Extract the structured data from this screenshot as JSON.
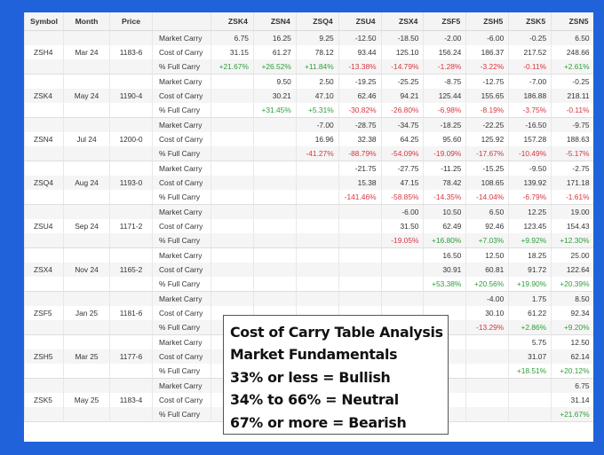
{
  "header": {
    "symbol": "Symbol",
    "month": "Month",
    "price": "Price",
    "contracts": [
      "ZSK4",
      "ZSN4",
      "ZSQ4",
      "ZSU4",
      "ZSX4",
      "ZSF5",
      "ZSH5",
      "ZSK5",
      "ZSN5"
    ]
  },
  "rows": [
    {
      "symbol": "",
      "month": "",
      "price": "",
      "label": "Market Carry",
      "values": [
        "6.75",
        "16.25",
        "9.25",
        "-12.50",
        "-18.50",
        "-2.00",
        "-6.00",
        "-0.25",
        "6.50"
      ]
    },
    {
      "symbol": "ZSH4",
      "month": "Mar 24",
      "price": "1183-6",
      "label": "Cost of Carry",
      "values": [
        "31.15",
        "61.27",
        "78.12",
        "93.44",
        "125.10",
        "156.24",
        "186.37",
        "217.52",
        "248.66"
      ]
    },
    {
      "symbol": "",
      "month": "",
      "price": "",
      "label": "% Full Carry",
      "values": [
        "+21.67%",
        "+26.52%",
        "+11.84%",
        "-13.38%",
        "-14.79%",
        "-1.28%",
        "-3.22%",
        "-0.11%",
        "+2.61%"
      ]
    },
    {
      "symbol": "",
      "month": "",
      "price": "",
      "label": "Market Carry",
      "values": [
        "",
        "9.50",
        "2.50",
        "-19.25",
        "-25.25",
        "-8.75",
        "-12.75",
        "-7.00",
        "-0.25"
      ]
    },
    {
      "symbol": "ZSK4",
      "month": "May 24",
      "price": "1190-4",
      "label": "Cost of Carry",
      "values": [
        "",
        "30.21",
        "47.10",
        "62.46",
        "94.21",
        "125.44",
        "155.65",
        "186.88",
        "218.11"
      ]
    },
    {
      "symbol": "",
      "month": "",
      "price": "",
      "label": "% Full Carry",
      "values": [
        "",
        "+31.45%",
        "+5.31%",
        "-30.82%",
        "-26.80%",
        "-6.98%",
        "-8.19%",
        "-3.75%",
        "-0.11%"
      ]
    },
    {
      "symbol": "",
      "month": "",
      "price": "",
      "label": "Market Carry",
      "values": [
        "",
        "",
        "-7.00",
        "-28.75",
        "-34.75",
        "-18.25",
        "-22.25",
        "-16.50",
        "-9.75"
      ]
    },
    {
      "symbol": "ZSN4",
      "month": "Jul 24",
      "price": "1200-0",
      "label": "Cost of Carry",
      "values": [
        "",
        "",
        "16.96",
        "32.38",
        "64.25",
        "95.60",
        "125.92",
        "157.28",
        "188.63"
      ]
    },
    {
      "symbol": "",
      "month": "",
      "price": "",
      "label": "% Full Carry",
      "values": [
        "",
        "",
        "-41.27%",
        "-88.79%",
        "-54.09%",
        "-19.09%",
        "-17.67%",
        "-10.49%",
        "-5.17%"
      ]
    },
    {
      "symbol": "",
      "month": "",
      "price": "",
      "label": "Market Carry",
      "values": [
        "",
        "",
        "",
        "-21.75",
        "-27.75",
        "-11.25",
        "-15.25",
        "-9.50",
        "-2.75"
      ]
    },
    {
      "symbol": "ZSQ4",
      "month": "Aug 24",
      "price": "1193-0",
      "label": "Cost of Carry",
      "values": [
        "",
        "",
        "",
        "15.38",
        "47.15",
        "78.42",
        "108.65",
        "139.92",
        "171.18"
      ]
    },
    {
      "symbol": "",
      "month": "",
      "price": "",
      "label": "% Full Carry",
      "values": [
        "",
        "",
        "",
        "-141.46%",
        "-58.85%",
        "-14.35%",
        "-14.04%",
        "-6.79%",
        "-1.61%"
      ]
    },
    {
      "symbol": "",
      "month": "",
      "price": "",
      "label": "Market Carry",
      "values": [
        "",
        "",
        "",
        "",
        "-6.00",
        "10.50",
        "6.50",
        "12.25",
        "19.00"
      ]
    },
    {
      "symbol": "ZSU4",
      "month": "Sep 24",
      "price": "1171-2",
      "label": "Cost of Carry",
      "values": [
        "",
        "",
        "",
        "",
        "31.50",
        "62.49",
        "92.46",
        "123.45",
        "154.43"
      ]
    },
    {
      "symbol": "",
      "month": "",
      "price": "",
      "label": "% Full Carry",
      "values": [
        "",
        "",
        "",
        "",
        "-19.05%",
        "+16.80%",
        "+7.03%",
        "+9.92%",
        "+12.30%"
      ]
    },
    {
      "symbol": "",
      "month": "",
      "price": "",
      "label": "Market Carry",
      "values": [
        "",
        "",
        "",
        "",
        "",
        "16.50",
        "12.50",
        "18.25",
        "25.00"
      ]
    },
    {
      "symbol": "ZSX4",
      "month": "Nov 24",
      "price": "1165-2",
      "label": "Cost of Carry",
      "values": [
        "",
        "",
        "",
        "",
        "",
        "30.91",
        "60.81",
        "91.72",
        "122.64"
      ]
    },
    {
      "symbol": "",
      "month": "",
      "price": "",
      "label": "% Full Carry",
      "values": [
        "",
        "",
        "",
        "",
        "",
        "+53.38%",
        "+20.56%",
        "+19.90%",
        "+20.39%"
      ]
    },
    {
      "symbol": "",
      "month": "",
      "price": "",
      "label": "Market Carry",
      "values": [
        "",
        "",
        "",
        "",
        "",
        "",
        "-4.00",
        "1.75",
        "8.50"
      ]
    },
    {
      "symbol": "ZSF5",
      "month": "Jan 25",
      "price": "1181-6",
      "label": "Cost of Carry",
      "values": [
        "",
        "",
        "",
        "",
        "",
        "",
        "30.10",
        "61.22",
        "92.34"
      ]
    },
    {
      "symbol": "",
      "month": "",
      "price": "",
      "label": "% Full Carry",
      "values": [
        "",
        "",
        "",
        "",
        "",
        "",
        "-13.29%",
        "+2.86%",
        "+9.20%"
      ]
    },
    {
      "symbol": "",
      "month": "",
      "price": "",
      "label": "Market Carry",
      "values": [
        "",
        "",
        "",
        "",
        "",
        "",
        "",
        "5.75",
        "12.50"
      ]
    },
    {
      "symbol": "ZSH5",
      "month": "Mar 25",
      "price": "1177-6",
      "label": "Cost of Carry",
      "values": [
        "",
        "",
        "",
        "",
        "",
        "",
        "",
        "31.07",
        "62.14"
      ]
    },
    {
      "symbol": "",
      "month": "",
      "price": "",
      "label": "% Full Carry",
      "values": [
        "",
        "",
        "",
        "",
        "",
        "",
        "",
        "+18.51%",
        "+20.12%"
      ]
    },
    {
      "symbol": "",
      "month": "",
      "price": "",
      "label": "Market Carry",
      "values": [
        "",
        "",
        "",
        "",
        "",
        "",
        "",
        "",
        "6.75"
      ]
    },
    {
      "symbol": "ZSK5",
      "month": "May 25",
      "price": "1183-4",
      "label": "Cost of Carry",
      "values": [
        "",
        "",
        "",
        "",
        "",
        "",
        "",
        "",
        "31.14"
      ]
    },
    {
      "symbol": "",
      "month": "",
      "price": "",
      "label": "% Full Carry",
      "values": [
        "",
        "",
        "",
        "",
        "",
        "",
        "",
        "",
        "+21.67%"
      ]
    }
  ],
  "overlay": {
    "lines": [
      "Cost of Carry Table Analysis",
      "Market Fundamentals",
      "33% or less = Bullish",
      "34% to 66% = Neutral",
      "67% or more = Bearish"
    ]
  },
  "colors": {
    "background": "#1f62d9",
    "positive": "#2e9e3a",
    "negative": "#d9363e"
  }
}
